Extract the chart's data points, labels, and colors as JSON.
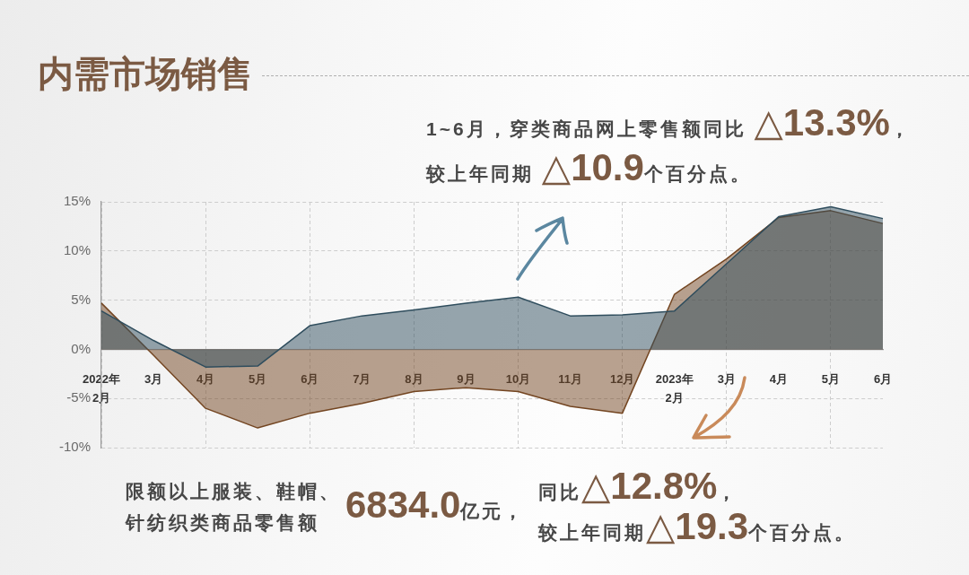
{
  "chart_data": {
    "type": "area",
    "title": "内需市场销售",
    "categories": [
      "2022年 2月",
      "3月",
      "4月",
      "5月",
      "6月",
      "7月",
      "8月",
      "9月",
      "10月",
      "11月",
      "12月",
      "2023年 2月",
      "3月",
      "4月",
      "5月",
      "6月"
    ],
    "series": [
      {
        "color": "#97a6ae",
        "values": [
          3.9,
          0.9,
          -1.8,
          -1.7,
          2.4,
          3.4,
          4.0,
          4.7,
          5.3,
          3.4,
          3.5,
          3.9,
          8.7,
          13.5,
          14.5,
          13.3
        ]
      },
      {
        "color": "#b9a290",
        "values": [
          4.7,
          -0.6,
          -6.0,
          -8.0,
          -6.5,
          -5.5,
          -4.3,
          -3.9,
          -4.3,
          -5.8,
          -6.5,
          5.6,
          9.2,
          13.4,
          14.1,
          12.8
        ]
      }
    ],
    "ylim": [
      -10,
      15
    ],
    "yticks": [
      {
        "value": -10,
        "label": "-10%"
      },
      {
        "value": -5,
        "label": "-5%"
      },
      {
        "value": 0,
        "label": "0%"
      },
      {
        "value": 5,
        "label": "5%"
      },
      {
        "value": 10,
        "label": "10%"
      },
      {
        "value": 15,
        "label": "15%"
      }
    ],
    "grid": true,
    "annotations": [
      "1~6月，穿类商品网上零售额同比 △13.3%，",
      "较上年同期 △10.9个百分点。",
      "限额以上服装、鞋帽、",
      "针纺织类商品零售额",
      "6834.0亿元，",
      "同比△12.8%，",
      "较上年同期△19.3个百分点。"
    ]
  }
}
